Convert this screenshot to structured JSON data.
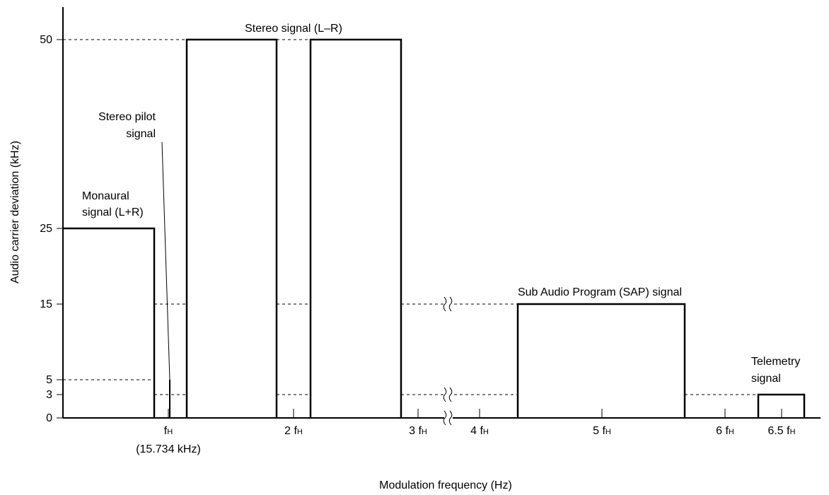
{
  "chart_data": {
    "type": "bar",
    "title": "",
    "xlabel": "Modulation frequency (Hz)",
    "ylabel": "Audio carrier deviation (kHz)",
    "y_ticks": [
      0,
      3,
      5,
      15,
      25,
      50
    ],
    "y_tick_labels": [
      "0",
      "3",
      "5",
      "15",
      "25",
      "50"
    ],
    "ylim": [
      0,
      50
    ],
    "x_ticks": [
      {
        "x": 1,
        "base": "f",
        "sub": "H",
        "extra": "(15.734 kHz)"
      },
      {
        "x": 2,
        "base": "2 f",
        "sub": "H",
        "extra": ""
      },
      {
        "x": 3,
        "base": "3 f",
        "sub": "H",
        "extra": ""
      },
      {
        "x": 4,
        "base": "4 f",
        "sub": "H",
        "extra": ""
      },
      {
        "x": 5,
        "base": "5 f",
        "sub": "H",
        "extra": ""
      },
      {
        "x": 6,
        "base": "6 f",
        "sub": "H",
        "extra": ""
      },
      {
        "x": 6.5,
        "base": "6.5 f",
        "sub": "H",
        "extra": ""
      }
    ],
    "bands": [
      {
        "name": "monaural",
        "x_start": 0,
        "x_end": 1.0,
        "value": 25
      },
      {
        "name": "pilot",
        "x_start": 1.0,
        "x_end": 1.0,
        "value": 5
      },
      {
        "name": "stereo-lower",
        "x_start": 1.0,
        "x_end": 2.0,
        "value": 50
      },
      {
        "name": "stereo-upper",
        "x_start": 2.0,
        "x_end": 3.0,
        "value": 50
      },
      {
        "name": "sap",
        "x_start": 4.3,
        "x_end": 5.7,
        "value": 15
      },
      {
        "name": "telemetry",
        "x_start": 6.3,
        "x_end": 6.7,
        "value": 3
      }
    ],
    "annotations": {
      "monaural": [
        "Monaural",
        "signal (L+R)"
      ],
      "pilot": [
        "Stereo pilot",
        "signal"
      ],
      "stereo": [
        "Stereo signal (L–R)"
      ],
      "sap": [
        "Sub Audio Program (SAP) signal"
      ],
      "telemetry": [
        "Telemetry",
        "signal"
      ]
    },
    "axis_break": true,
    "grid": false,
    "reference_lines": "dashed"
  }
}
